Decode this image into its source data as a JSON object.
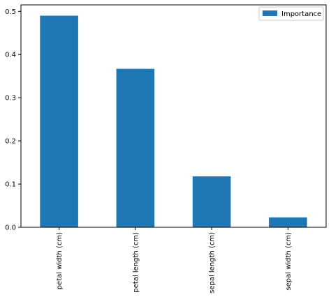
{
  "chart_data": {
    "type": "bar",
    "categories": [
      "petal width (cm)",
      "petal length (cm)",
      "sepal length (cm)",
      "sepal width (cm)"
    ],
    "series": [
      {
        "name": "Importance",
        "values": [
          0.49,
          0.367,
          0.118,
          0.023
        ]
      }
    ],
    "title": "",
    "xlabel": "",
    "ylabel": "",
    "ylim": [
      0,
      0.515
    ],
    "yticks": [
      "0.0",
      "0.1",
      "0.2",
      "0.3",
      "0.4",
      "0.5"
    ],
    "legend": {
      "placement": "top-right",
      "items": [
        "Importance"
      ]
    },
    "grid": false,
    "colors": {
      "bar": "#1f77b4"
    }
  }
}
